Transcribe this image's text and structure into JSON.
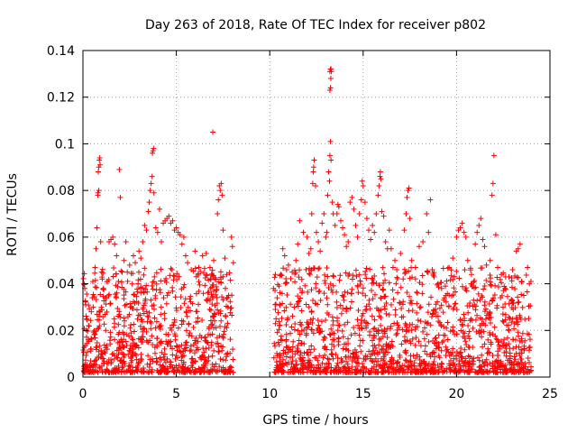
{
  "chart_data": {
    "type": "scatter",
    "title": "Day 263 of 2018, Rate Of TEC Index for receiver p802",
    "xlabel": "GPS time / hours",
    "ylabel": "ROTI / TECUs",
    "xlim": [
      0,
      25
    ],
    "ylim": [
      0,
      0.14
    ],
    "grid": true,
    "x_ticks": [
      {
        "value": 0,
        "label": "0"
      },
      {
        "value": 5,
        "label": "5"
      },
      {
        "value": 10,
        "label": "10"
      },
      {
        "value": 15,
        "label": "15"
      },
      {
        "value": 20,
        "label": "20"
      },
      {
        "value": 25,
        "label": "25"
      }
    ],
    "y_ticks": [
      {
        "value": 0,
        "label": "0"
      },
      {
        "value": 0.02,
        "label": "0.02"
      },
      {
        "value": 0.04,
        "label": "0.04"
      },
      {
        "value": 0.06,
        "label": "0.06"
      },
      {
        "value": 0.08,
        "label": "0.08"
      },
      {
        "value": 0.1,
        "label": "0.1"
      },
      {
        "value": 0.12,
        "label": "0.12"
      },
      {
        "value": 0.14,
        "label": "0.14"
      }
    ],
    "marker": "+",
    "series_color": "#ff0000",
    "series": [
      {
        "name": "ROTI",
        "points": [
          [
            0.05,
            0.04
          ],
          [
            0.1,
            0.038
          ],
          [
            0.15,
            0.031
          ],
          [
            0.2,
            0.025
          ],
          [
            0.3,
            0.022
          ],
          [
            0.45,
            0.028
          ],
          [
            0.5,
            0.034
          ],
          [
            0.55,
            0.03
          ],
          [
            0.65,
            0.047
          ],
          [
            0.7,
            0.055
          ],
          [
            0.75,
            0.064
          ],
          [
            0.8,
            0.079
          ],
          [
            0.82,
            0.088
          ],
          [
            0.85,
            0.09
          ],
          [
            0.88,
            0.093
          ],
          [
            0.9,
            0.094
          ],
          [
            0.92,
            0.091
          ],
          [
            0.8,
            0.078
          ],
          [
            0.85,
            0.08
          ],
          [
            0.95,
            0.058
          ],
          [
            1.0,
            0.045
          ],
          [
            1.1,
            0.038
          ],
          [
            1.2,
            0.034
          ],
          [
            1.3,
            0.041
          ],
          [
            1.4,
            0.058
          ],
          [
            1.5,
            0.059
          ],
          [
            1.6,
            0.06
          ],
          [
            1.7,
            0.057
          ],
          [
            1.8,
            0.052
          ],
          [
            1.9,
            0.041
          ],
          [
            1.95,
            0.089
          ],
          [
            2.0,
            0.077
          ],
          [
            2.1,
            0.045
          ],
          [
            2.2,
            0.05
          ],
          [
            2.3,
            0.058
          ],
          [
            2.5,
            0.048
          ],
          [
            2.7,
            0.052
          ],
          [
            2.8,
            0.049
          ],
          [
            3.0,
            0.054
          ],
          [
            3.1,
            0.051
          ],
          [
            3.2,
            0.058
          ],
          [
            3.3,
            0.065
          ],
          [
            3.4,
            0.063
          ],
          [
            3.5,
            0.071
          ],
          [
            3.55,
            0.075
          ],
          [
            3.6,
            0.08
          ],
          [
            3.65,
            0.083
          ],
          [
            3.7,
            0.086
          ],
          [
            3.72,
            0.096
          ],
          [
            3.75,
            0.097
          ],
          [
            3.78,
            0.098
          ],
          [
            3.8,
            0.079
          ],
          [
            3.9,
            0.064
          ],
          [
            4.0,
            0.062
          ],
          [
            4.1,
            0.072
          ],
          [
            4.2,
            0.058
          ],
          [
            4.3,
            0.066
          ],
          [
            4.4,
            0.067
          ],
          [
            4.5,
            0.068
          ],
          [
            4.6,
            0.069
          ],
          [
            4.7,
            0.066
          ],
          [
            4.8,
            0.067
          ],
          [
            4.9,
            0.063
          ],
          [
            5.0,
            0.064
          ],
          [
            5.1,
            0.062
          ],
          [
            5.2,
            0.061
          ],
          [
            5.3,
            0.057
          ],
          [
            5.4,
            0.06
          ],
          [
            5.5,
            0.052
          ],
          [
            5.6,
            0.049
          ],
          [
            5.8,
            0.046
          ],
          [
            6.0,
            0.054
          ],
          [
            6.2,
            0.047
          ],
          [
            6.4,
            0.052
          ],
          [
            6.6,
            0.053
          ],
          [
            6.8,
            0.047
          ],
          [
            6.95,
            0.105
          ],
          [
            7.0,
            0.05
          ],
          [
            7.1,
            0.042
          ],
          [
            7.2,
            0.07
          ],
          [
            7.25,
            0.076
          ],
          [
            7.3,
            0.082
          ],
          [
            7.35,
            0.08
          ],
          [
            7.4,
            0.083
          ],
          [
            7.45,
            0.078
          ],
          [
            7.5,
            0.063
          ],
          [
            7.6,
            0.051
          ],
          [
            7.7,
            0.044
          ],
          [
            7.8,
            0.035
          ],
          [
            7.95,
            0.06
          ],
          [
            8.0,
            0.056
          ],
          [
            8.05,
            0.049
          ],
          [
            10.2,
            0.038
          ],
          [
            10.3,
            0.044
          ],
          [
            10.4,
            0.034
          ],
          [
            10.5,
            0.039
          ],
          [
            10.6,
            0.044
          ],
          [
            10.7,
            0.055
          ],
          [
            10.8,
            0.052
          ],
          [
            10.9,
            0.046
          ],
          [
            11.0,
            0.048
          ],
          [
            11.2,
            0.045
          ],
          [
            11.4,
            0.05
          ],
          [
            11.5,
            0.057
          ],
          [
            11.6,
            0.067
          ],
          [
            11.8,
            0.062
          ],
          [
            12.0,
            0.06
          ],
          [
            12.1,
            0.053
          ],
          [
            12.2,
            0.055
          ],
          [
            12.25,
            0.07
          ],
          [
            12.3,
            0.083
          ],
          [
            12.33,
            0.088
          ],
          [
            12.35,
            0.09
          ],
          [
            12.38,
            0.093
          ],
          [
            12.45,
            0.082
          ],
          [
            12.5,
            0.062
          ],
          [
            12.6,
            0.058
          ],
          [
            12.7,
            0.054
          ],
          [
            12.8,
            0.066
          ],
          [
            12.9,
            0.07
          ],
          [
            13.0,
            0.06
          ],
          [
            13.05,
            0.062
          ],
          [
            13.1,
            0.078
          ],
          [
            13.15,
            0.088
          ],
          [
            13.2,
            0.084
          ],
          [
            13.22,
            0.095
          ],
          [
            13.25,
            0.101
          ],
          [
            13.28,
            0.093
          ],
          [
            13.22,
            0.123
          ],
          [
            13.25,
            0.124
          ],
          [
            13.27,
            0.128
          ],
          [
            13.22,
            0.131
          ],
          [
            13.25,
            0.132
          ],
          [
            13.28,
            0.132
          ],
          [
            13.3,
            0.131
          ],
          [
            13.35,
            0.075
          ],
          [
            13.4,
            0.07
          ],
          [
            13.5,
            0.065
          ],
          [
            13.6,
            0.07
          ],
          [
            13.65,
            0.074
          ],
          [
            13.7,
            0.073
          ],
          [
            13.8,
            0.067
          ],
          [
            13.9,
            0.064
          ],
          [
            14.0,
            0.061
          ],
          [
            14.1,
            0.056
          ],
          [
            14.2,
            0.058
          ],
          [
            14.3,
            0.075
          ],
          [
            14.4,
            0.077
          ],
          [
            14.5,
            0.072
          ],
          [
            14.6,
            0.065
          ],
          [
            14.7,
            0.06
          ],
          [
            14.8,
            0.07
          ],
          [
            14.9,
            0.076
          ],
          [
            14.95,
            0.084
          ],
          [
            15.0,
            0.082
          ],
          [
            15.1,
            0.075
          ],
          [
            15.2,
            0.068
          ],
          [
            15.3,
            0.063
          ],
          [
            15.4,
            0.059
          ],
          [
            15.5,
            0.065
          ],
          [
            15.6,
            0.062
          ],
          [
            15.7,
            0.07
          ],
          [
            15.8,
            0.078
          ],
          [
            15.85,
            0.082
          ],
          [
            15.9,
            0.086
          ],
          [
            15.92,
            0.088
          ],
          [
            15.95,
            0.085
          ],
          [
            16.0,
            0.071
          ],
          [
            16.1,
            0.069
          ],
          [
            16.2,
            0.058
          ],
          [
            16.3,
            0.055
          ],
          [
            16.4,
            0.063
          ],
          [
            16.5,
            0.055
          ],
          [
            16.6,
            0.047
          ],
          [
            16.7,
            0.05
          ],
          [
            16.8,
            0.046
          ],
          [
            17.0,
            0.053
          ],
          [
            17.2,
            0.063
          ],
          [
            17.3,
            0.07
          ],
          [
            17.35,
            0.077
          ],
          [
            17.4,
            0.08
          ],
          [
            17.45,
            0.081
          ],
          [
            17.5,
            0.068
          ],
          [
            17.6,
            0.05
          ],
          [
            17.8,
            0.047
          ],
          [
            18.0,
            0.056
          ],
          [
            18.2,
            0.058
          ],
          [
            18.4,
            0.07
          ],
          [
            18.5,
            0.062
          ],
          [
            18.6,
            0.076
          ],
          [
            18.7,
            0.046
          ],
          [
            18.8,
            0.043
          ],
          [
            19.0,
            0.04
          ],
          [
            19.2,
            0.038
          ],
          [
            19.4,
            0.039
          ],
          [
            19.6,
            0.047
          ],
          [
            19.8,
            0.051
          ],
          [
            20.0,
            0.06
          ],
          [
            20.1,
            0.063
          ],
          [
            20.2,
            0.064
          ],
          [
            20.3,
            0.066
          ],
          [
            20.4,
            0.062
          ],
          [
            20.5,
            0.06
          ],
          [
            20.6,
            0.05
          ],
          [
            20.8,
            0.044
          ],
          [
            21.0,
            0.057
          ],
          [
            21.1,
            0.062
          ],
          [
            21.2,
            0.065
          ],
          [
            21.3,
            0.068
          ],
          [
            21.4,
            0.059
          ],
          [
            21.5,
            0.056
          ],
          [
            21.6,
            0.048
          ],
          [
            21.8,
            0.05
          ],
          [
            21.9,
            0.078
          ],
          [
            21.95,
            0.083
          ],
          [
            22.0,
            0.095
          ],
          [
            22.1,
            0.061
          ],
          [
            22.2,
            0.047
          ],
          [
            22.4,
            0.044
          ],
          [
            22.6,
            0.038
          ],
          [
            22.8,
            0.043
          ],
          [
            23.0,
            0.046
          ],
          [
            23.2,
            0.054
          ],
          [
            23.3,
            0.055
          ],
          [
            23.4,
            0.057
          ],
          [
            23.5,
            0.041
          ],
          [
            23.6,
            0.035
          ],
          [
            23.8,
            0.047
          ],
          [
            23.9,
            0.04
          ]
        ]
      }
    ]
  }
}
